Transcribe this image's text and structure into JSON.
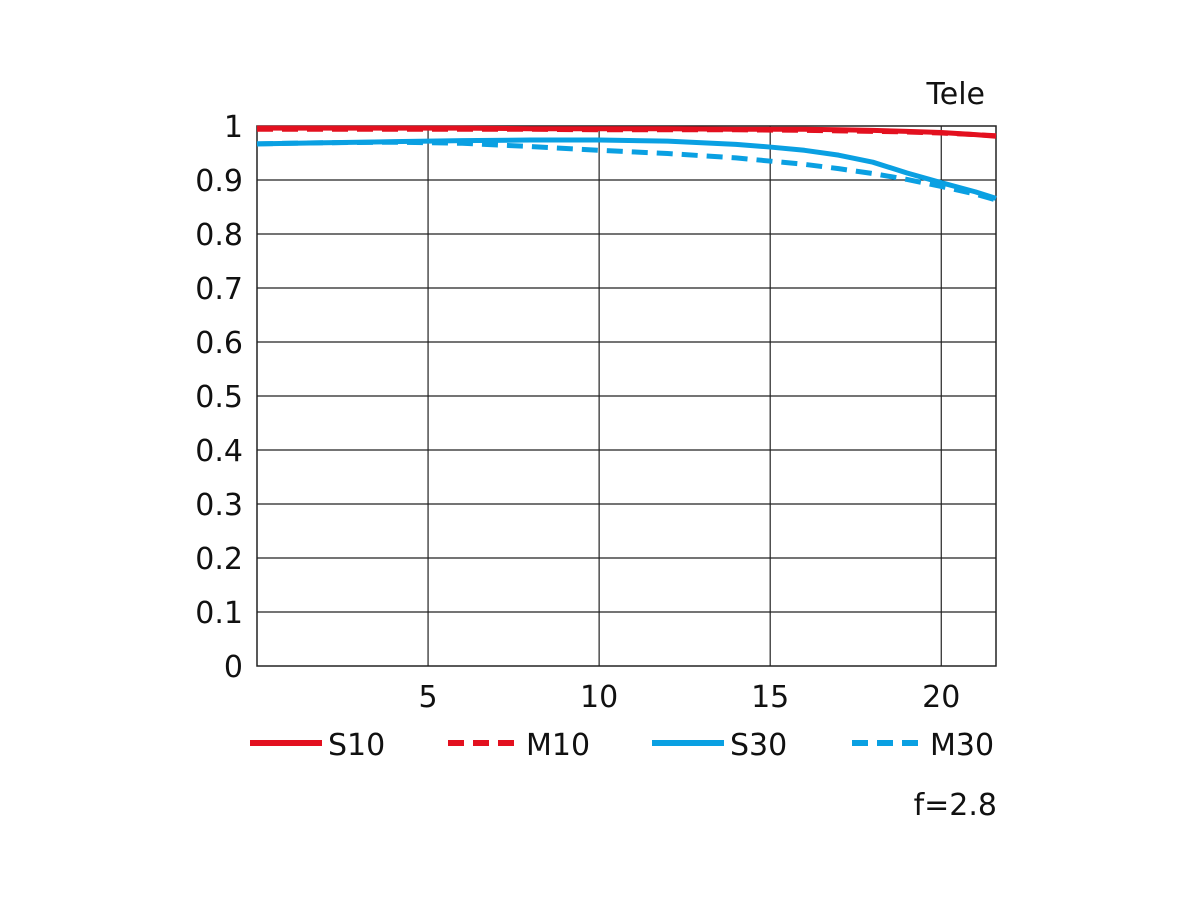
{
  "chart_data": {
    "type": "line",
    "title": "Tele",
    "footnote": "f=2.8",
    "xlabel": "",
    "ylabel": "",
    "xlim": [
      0,
      21.6
    ],
    "ylim": [
      0,
      1
    ],
    "x_ticks": [
      5,
      10,
      15,
      20
    ],
    "x_tick_labels": [
      "5",
      "10",
      "15",
      "20"
    ],
    "y_ticks": [
      0,
      0.1,
      0.2,
      0.3,
      0.4,
      0.5,
      0.6,
      0.7,
      0.8,
      0.9,
      1
    ],
    "y_tick_labels": [
      "0",
      "0.1",
      "0.2",
      "0.3",
      "0.4",
      "0.5",
      "0.6",
      "0.7",
      "0.8",
      "0.9",
      "1"
    ],
    "grid": true,
    "legend_position": "bottom",
    "colors": {
      "red": "#e3101f",
      "blue": "#0aa0e2",
      "grid": "#222222"
    },
    "series": [
      {
        "name": "S10",
        "color": "#e3101f",
        "dashed": false,
        "x": [
          0,
          2,
          4,
          6,
          8,
          10,
          12,
          14,
          16,
          17,
          18,
          19,
          20,
          21,
          21.6
        ],
        "y": [
          0.996,
          0.996,
          0.996,
          0.996,
          0.995,
          0.995,
          0.995,
          0.994,
          0.994,
          0.993,
          0.992,
          0.99,
          0.988,
          0.984,
          0.981
        ]
      },
      {
        "name": "M10",
        "color": "#e3101f",
        "dashed": true,
        "x": [
          0,
          2,
          4,
          6,
          8,
          10,
          12,
          14,
          16,
          17,
          18,
          19,
          20,
          21,
          21.6
        ],
        "y": [
          0.994,
          0.994,
          0.994,
          0.994,
          0.994,
          0.993,
          0.993,
          0.993,
          0.992,
          0.991,
          0.99,
          0.989,
          0.987,
          0.984,
          0.982
        ]
      },
      {
        "name": "S30",
        "color": "#0aa0e2",
        "dashed": false,
        "x": [
          0,
          2,
          4,
          6,
          8,
          10,
          12,
          14,
          15,
          16,
          17,
          18,
          19,
          20,
          21,
          21.6
        ],
        "y": [
          0.967,
          0.969,
          0.971,
          0.973,
          0.974,
          0.974,
          0.972,
          0.966,
          0.961,
          0.955,
          0.946,
          0.933,
          0.913,
          0.895,
          0.878,
          0.866
        ]
      },
      {
        "name": "M30",
        "color": "#0aa0e2",
        "dashed": true,
        "x": [
          0,
          2,
          4,
          6,
          8,
          10,
          12,
          14,
          16,
          17,
          18,
          19,
          20,
          21,
          21.6
        ],
        "y": [
          0.967,
          0.969,
          0.97,
          0.968,
          0.962,
          0.955,
          0.949,
          0.941,
          0.929,
          0.921,
          0.912,
          0.901,
          0.888,
          0.874,
          0.863
        ]
      }
    ]
  }
}
